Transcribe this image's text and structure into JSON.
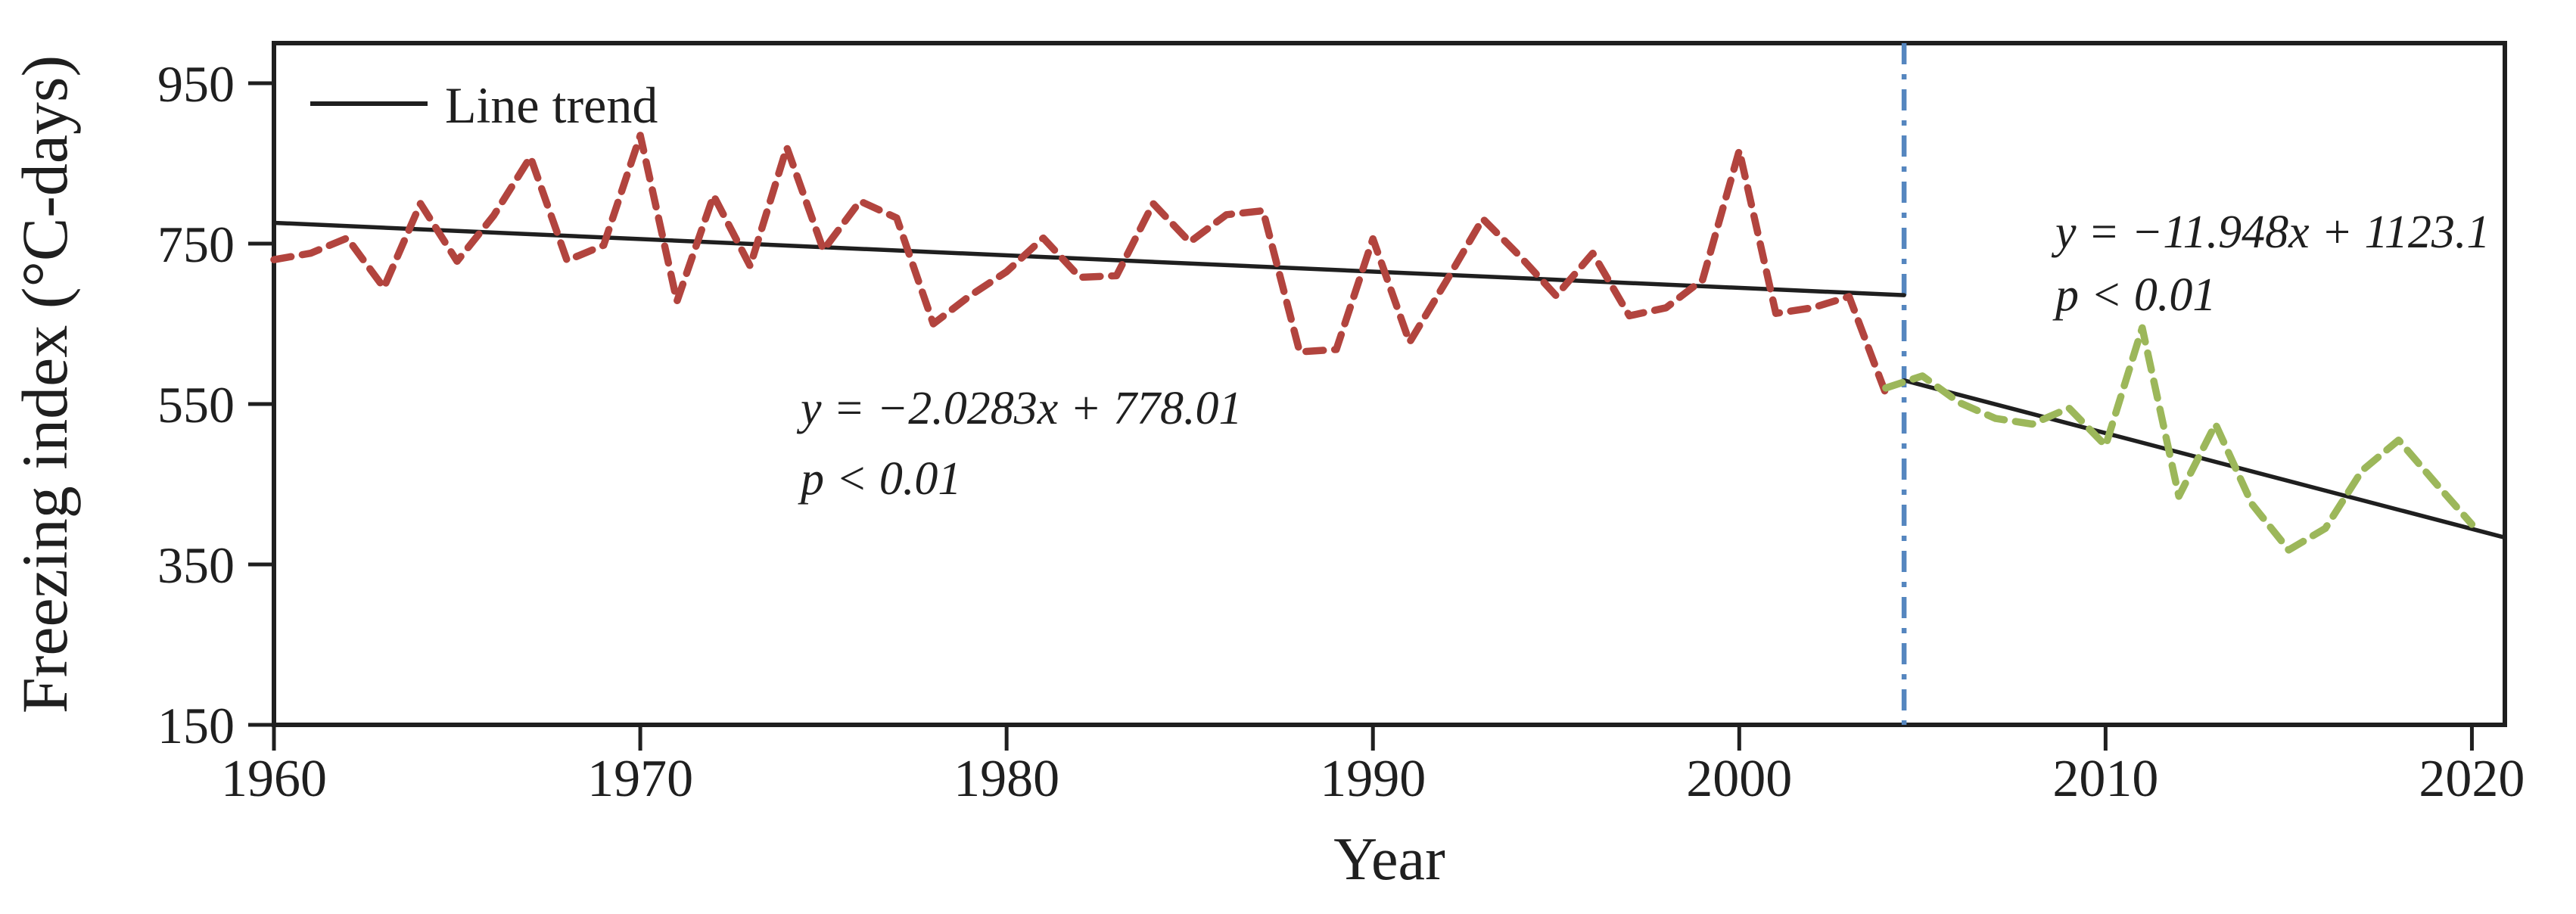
{
  "figure": {
    "y_axis_title": "Freezing index (°C-days)",
    "x_axis_title": "Year",
    "legend": {
      "label": "Line trend"
    },
    "annotations": {
      "period1_equation": "y = −2.0283x + 778.01",
      "period1_pvalue": "p < 0.01",
      "period2_equation": "y = −11.948x + 1123.1",
      "period2_pvalue": "p < 0.01"
    }
  },
  "chart_data": {
    "type": "line",
    "title": "",
    "xlabel": "Year",
    "ylabel": "Freezing index (°C-days)",
    "xlim": [
      1960,
      2020.9
    ],
    "ylim": [
      150,
      1000
    ],
    "x_ticks": [
      1960,
      1970,
      1980,
      1990,
      2000,
      2010,
      2020
    ],
    "y_ticks": [
      950,
      750,
      550,
      350,
      150
    ],
    "grid": false,
    "legend_position": "top-left",
    "colors": {
      "series1": "#b2443e",
      "series2": "#9cb75a",
      "trend": "#1f1f1f",
      "breakpoint": "#5586bf",
      "axis": "#1f1f1f"
    },
    "series": [
      {
        "name": "freezing-index-1960-2004",
        "color": "#b2443e",
        "style": "dashed",
        "x_start": 1960,
        "x_step": 1,
        "values": [
          730,
          738,
          757,
          695,
          800,
          728,
          785,
          858,
          729,
          748,
          885,
          678,
          810,
          722,
          870,
          742,
          803,
          782,
          650,
          685,
          715,
          757,
          708,
          710,
          800,
          752,
          786,
          791,
          615,
          618,
          756,
          627,
          703,
          781,
          735,
          685,
          738,
          660,
          670,
          705,
          866,
          663,
          670,
          684,
          563
        ]
      },
      {
        "name": "freezing-index-2004-2020",
        "color": "#9cb75a",
        "style": "dashed",
        "x_start": 2004,
        "x_step": 1,
        "values": [
          570,
          585,
          552,
          532,
          525,
          545,
          498,
          645,
          435,
          525,
          425,
          368,
          395,
          467,
          505,
          452,
          400
        ]
      }
    ],
    "trends": [
      {
        "name": "trend-1960-2004",
        "equation": "y = −2.0283x + 778.01",
        "pvalue": "p < 0.01",
        "slope": -2.0283,
        "intercept": 778.01,
        "x_index_origin_year": 1959,
        "year_range": [
          1960,
          2004.5
        ],
        "color": "#1f1f1f"
      },
      {
        "name": "trend-2005-2020",
        "equation": "y = −11.948x + 1123.1",
        "pvalue": "p < 0.01",
        "slope": -11.948,
        "intercept": 1123.1,
        "x_index_origin_year": 1959,
        "year_range": [
          2004.5,
          2020.9
        ],
        "color": "#1f1f1f"
      }
    ],
    "breakpoint": {
      "year": 2004.5,
      "color": "#5586bf",
      "style": "dash-dot"
    }
  }
}
